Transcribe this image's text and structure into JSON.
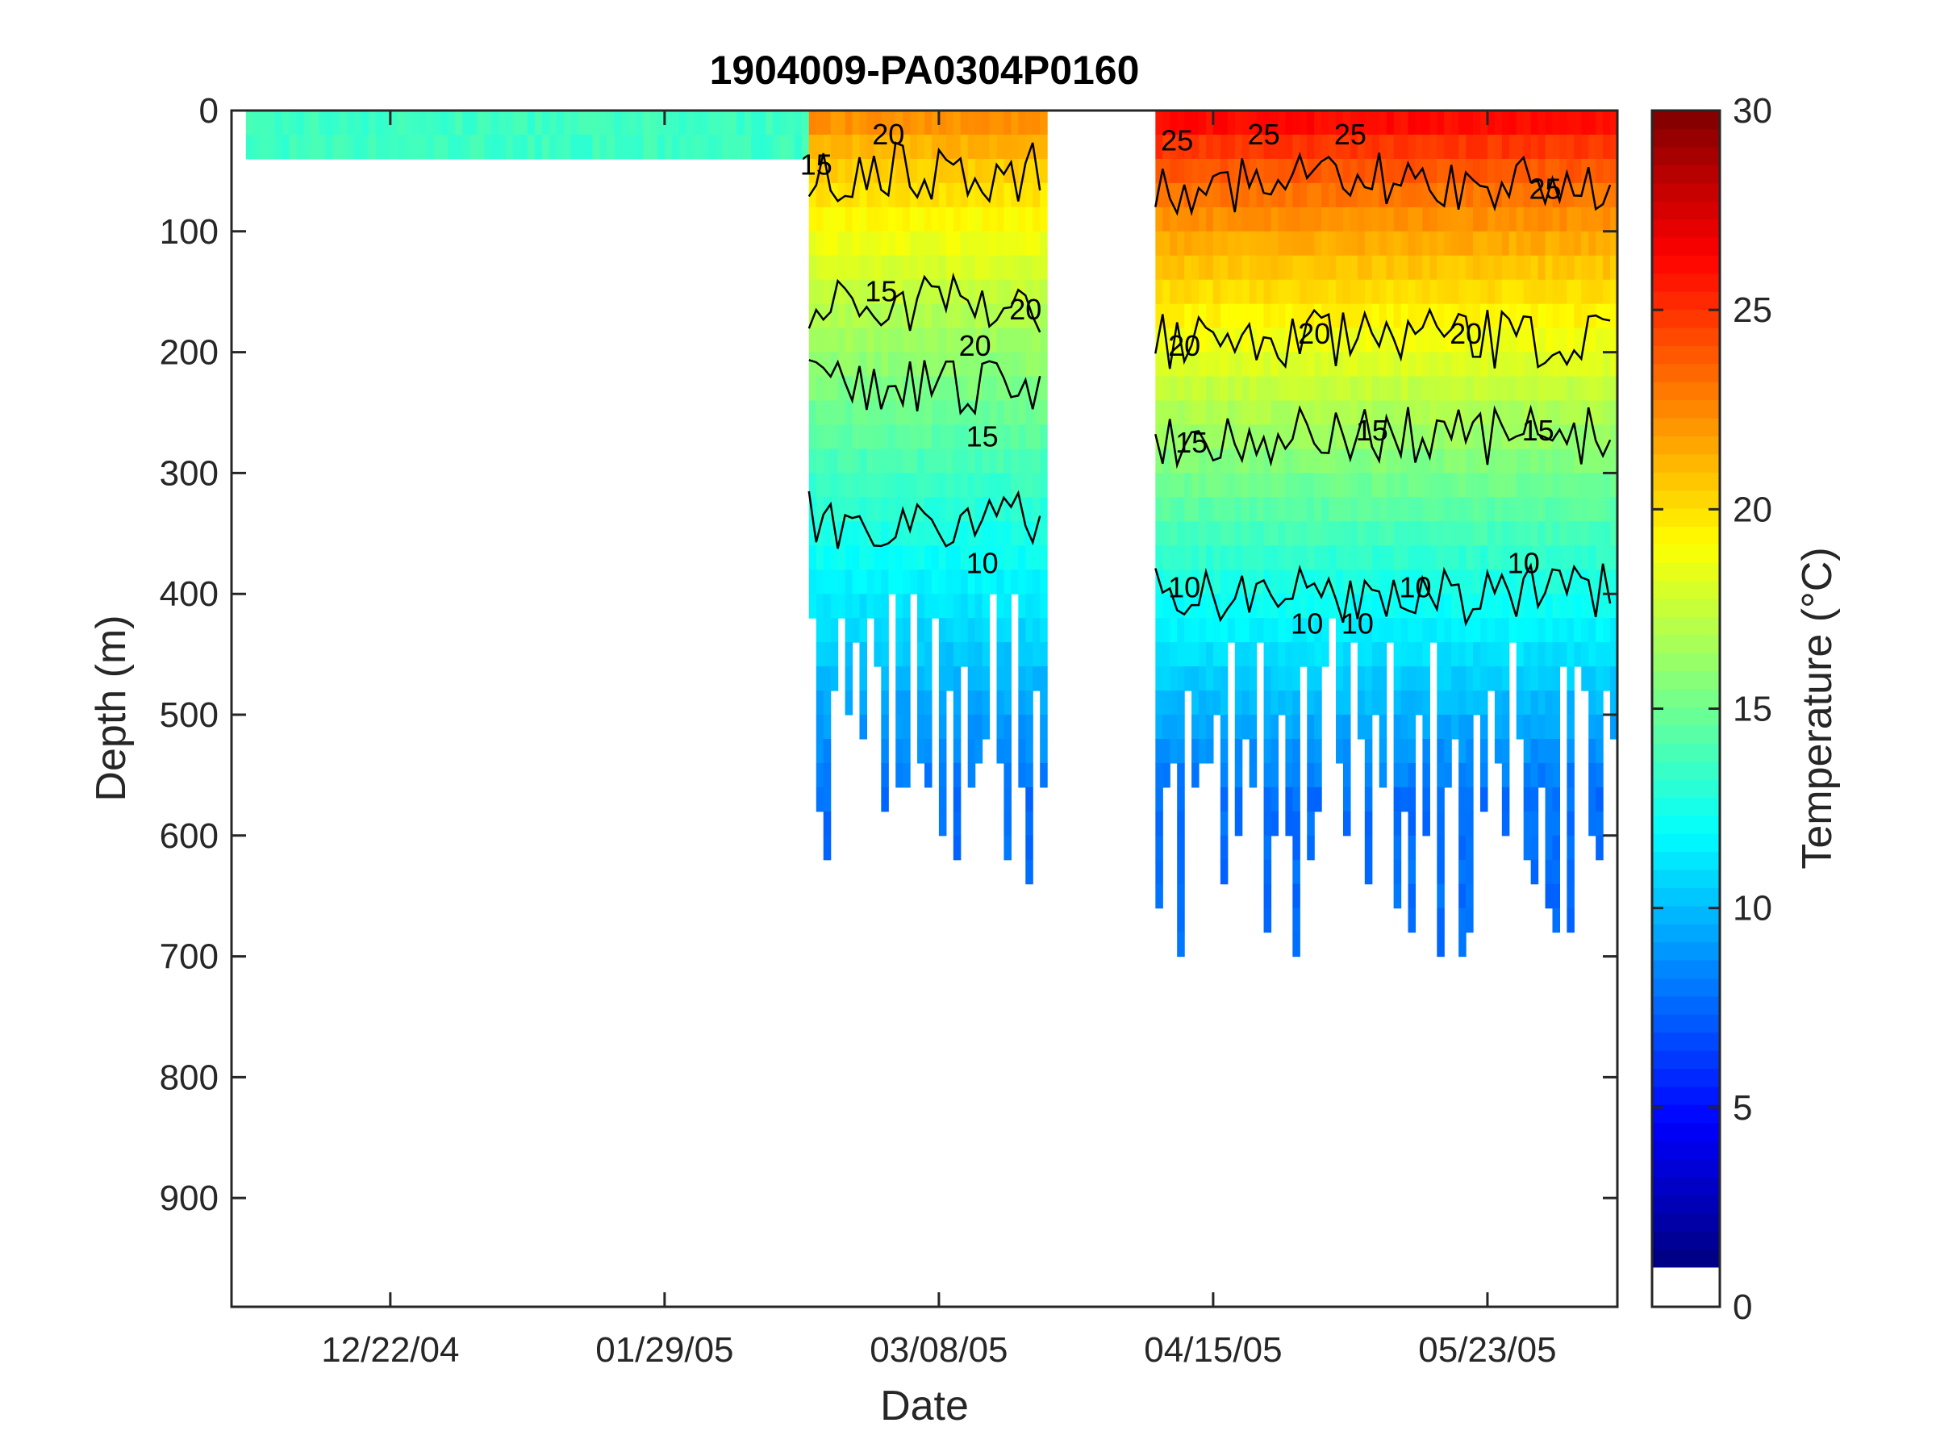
{
  "chart_data": {
    "type": "heatmap",
    "title": "1904009-PA0304P0160",
    "xlabel": "Date",
    "ylabel": "Depth (m)",
    "x_tick_labels": [
      "12/22/04",
      "01/29/05",
      "03/08/05",
      "04/15/05",
      "05/23/05"
    ],
    "x_range_dates": [
      "2004-11-30",
      "2005-06-10"
    ],
    "y_tick_labels": [
      "0",
      "100",
      "200",
      "300",
      "400",
      "500",
      "600",
      "700",
      "800",
      "900"
    ],
    "ylim": [
      0,
      990
    ],
    "y_reversed": true,
    "colorbar": {
      "label": "Temperature (°C)",
      "range": [
        0,
        30
      ],
      "tick_labels": [
        "0",
        "5",
        "10",
        "15",
        "20",
        "25",
        "30"
      ],
      "colormap": "jet"
    },
    "contour_levels": [
      10,
      15,
      20,
      25
    ],
    "contour_color": "#000000",
    "contour_labels": [
      {
        "text": "20",
        "date": "2005-03-01",
        "depth": 20
      },
      {
        "text": "15",
        "date": "2005-02-19",
        "depth": 45
      },
      {
        "text": "15",
        "date": "2005-02-28",
        "depth": 150
      },
      {
        "text": "20",
        "date": "2005-03-13",
        "depth": 195
      },
      {
        "text": "15",
        "date": "2005-03-14",
        "depth": 270
      },
      {
        "text": "10",
        "date": "2005-03-14",
        "depth": 375
      },
      {
        "text": "20",
        "date": "2005-03-20",
        "depth": 165
      },
      {
        "text": "25",
        "date": "2005-04-10",
        "depth": 25
      },
      {
        "text": "20",
        "date": "2005-04-11",
        "depth": 195
      },
      {
        "text": "15",
        "date": "2005-04-12",
        "depth": 275
      },
      {
        "text": "10",
        "date": "2005-04-11",
        "depth": 395
      },
      {
        "text": "25",
        "date": "2005-04-22",
        "depth": 20
      },
      {
        "text": "25",
        "date": "2005-05-04",
        "depth": 20
      },
      {
        "text": "20",
        "date": "2005-04-29",
        "depth": 185
      },
      {
        "text": "10",
        "date": "2005-04-28",
        "depth": 425
      },
      {
        "text": "10",
        "date": "2005-05-05",
        "depth": 425
      },
      {
        "text": "15",
        "date": "2005-05-07",
        "depth": 265
      },
      {
        "text": "20",
        "date": "2005-05-20",
        "depth": 185
      },
      {
        "text": "10",
        "date": "2005-05-13",
        "depth": 395
      },
      {
        "text": "25",
        "date": "2005-05-31",
        "depth": 65
      },
      {
        "text": "15",
        "date": "2005-05-30",
        "depth": 265
      },
      {
        "text": "10",
        "date": "2005-05-28",
        "depth": 375
      }
    ],
    "profile_groups": [
      {
        "start": "2004-12-02",
        "end": "2005-02-18",
        "max_depth": 30,
        "temperature": 13
      },
      {
        "start": "2005-02-18",
        "end": "2005-03-23",
        "max_depth": 500,
        "temperature_surface": 22,
        "temperature_bottom": 7
      },
      {
        "start": "2005-04-07",
        "end": "2005-06-10",
        "max_depth": 550,
        "temperature_surface": 26,
        "temperature_bottom": 7
      }
    ]
  }
}
